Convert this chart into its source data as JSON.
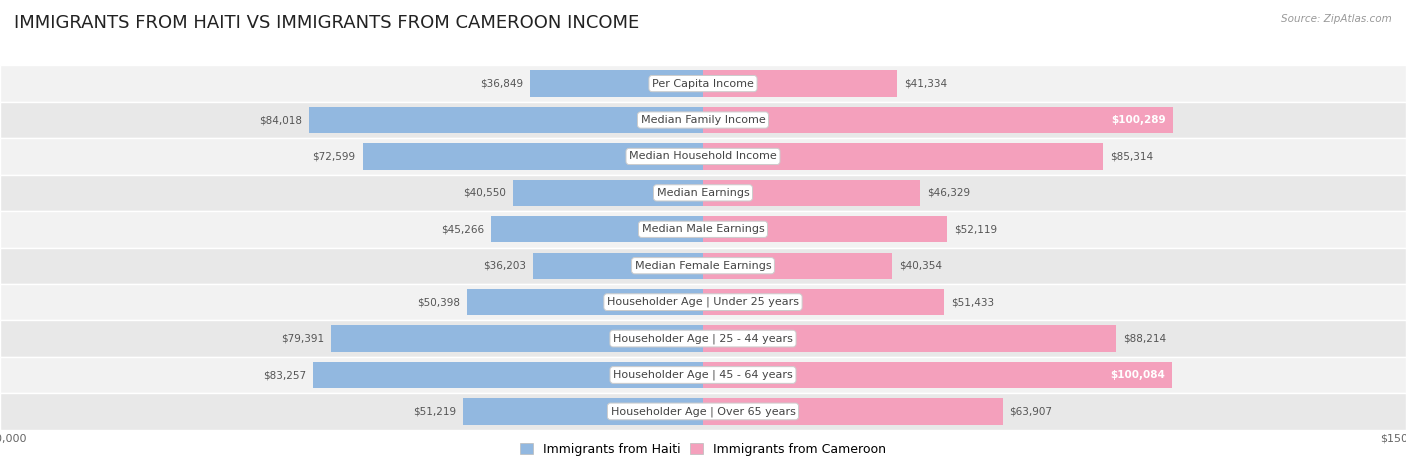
{
  "title": "IMMIGRANTS FROM HAITI VS IMMIGRANTS FROM CAMEROON INCOME",
  "source": "Source: ZipAtlas.com",
  "categories": [
    "Per Capita Income",
    "Median Family Income",
    "Median Household Income",
    "Median Earnings",
    "Median Male Earnings",
    "Median Female Earnings",
    "Householder Age | Under 25 years",
    "Householder Age | 25 - 44 years",
    "Householder Age | 45 - 64 years",
    "Householder Age | Over 65 years"
  ],
  "haiti_values": [
    36849,
    84018,
    72599,
    40550,
    45266,
    36203,
    50398,
    79391,
    83257,
    51219
  ],
  "cameroon_values": [
    41334,
    100289,
    85314,
    46329,
    52119,
    40354,
    51433,
    88214,
    100084,
    63907
  ],
  "haiti_color": "#92b8e0",
  "cameroon_color": "#f4a0bc",
  "max_value": 150000,
  "background_color": "#ffffff",
  "row_colors": [
    "#f2f2f2",
    "#e8e8e8"
  ],
  "title_fontsize": 13,
  "label_fontsize": 8,
  "value_fontsize": 7.5,
  "legend_fontsize": 9,
  "axis_label_fontsize": 8,
  "cameroon_large_threshold": 95000,
  "source_fontsize": 7.5
}
